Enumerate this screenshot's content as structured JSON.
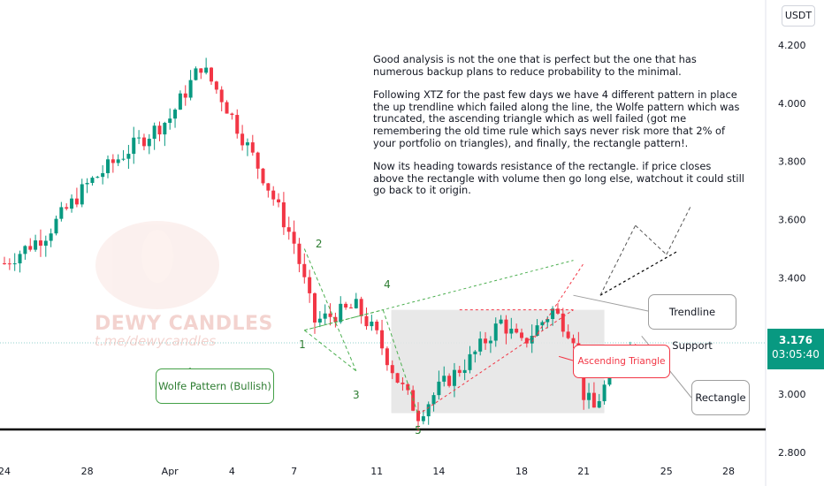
{
  "chart_data": {
    "type": "candlestick",
    "symbol": "XTZ",
    "price_unit": "USDT",
    "y_ticks": [
      "4.200",
      "4.000",
      "3.800",
      "3.600",
      "3.400",
      "3.200",
      "3.000",
      "2.800"
    ],
    "x_ticks": [
      "24",
      "28",
      "Apr",
      "4",
      "7",
      "11",
      "14",
      "18",
      "21",
      "25",
      "28"
    ],
    "current_price": "3.176",
    "countdown": "03:05:40",
    "trend_summary": [
      {
        "segment": "late Mar rise",
        "from": 3.45,
        "to": 3.85
      },
      {
        "segment": "early Apr peak",
        "value": 4.13
      },
      {
        "segment": "drop to Apr 7",
        "value": 3.25
      },
      {
        "segment": "Apr 11-12 low",
        "value": 2.93
      },
      {
        "segment": "Apr 17 high",
        "value": 3.29
      },
      {
        "segment": "Apr 18 low",
        "value": 2.95
      },
      {
        "segment": "last close",
        "value": 3.176
      }
    ],
    "pattern_points": [
      "1",
      "2",
      "3",
      "4",
      "5"
    ],
    "projected_target": 3.65
  },
  "labels": {
    "wolfe": "Wolfe Pattern (Bullish)",
    "trendline": "Trendline Support",
    "ascending": "Ascending Triangle",
    "rectangle": "Rectangle"
  },
  "analysis": {
    "p1": "Good analysis is not the one that is perfect but the one that has numerous backup plans to reduce probability to the minimal.",
    "p2": "Following XTZ for the past few days we have 4 different pattern in place the up trendline which failed along the line, the Wolfe pattern which was truncated, the ascending triangle which as well failed (got me remembering the old time rule which says never risk more that 2% of your portfolio on triangles), and finally, the rectangle pattern!.",
    "p3": "Now its heading towards resistance of the rectangle. if price closes above the rectangle with volume then go long else, watchout it could still go back to it origin."
  },
  "watermark": {
    "title": "DEWY CANDLES",
    "handle": "t.me/dewycandles"
  },
  "colors": {
    "up": "#089981",
    "down": "#f23645",
    "wolfe_lines": "#4caf50",
    "triangle_lines": "#f23645",
    "rectangle_fill": "#e6e6e6",
    "projection": "#555555"
  }
}
